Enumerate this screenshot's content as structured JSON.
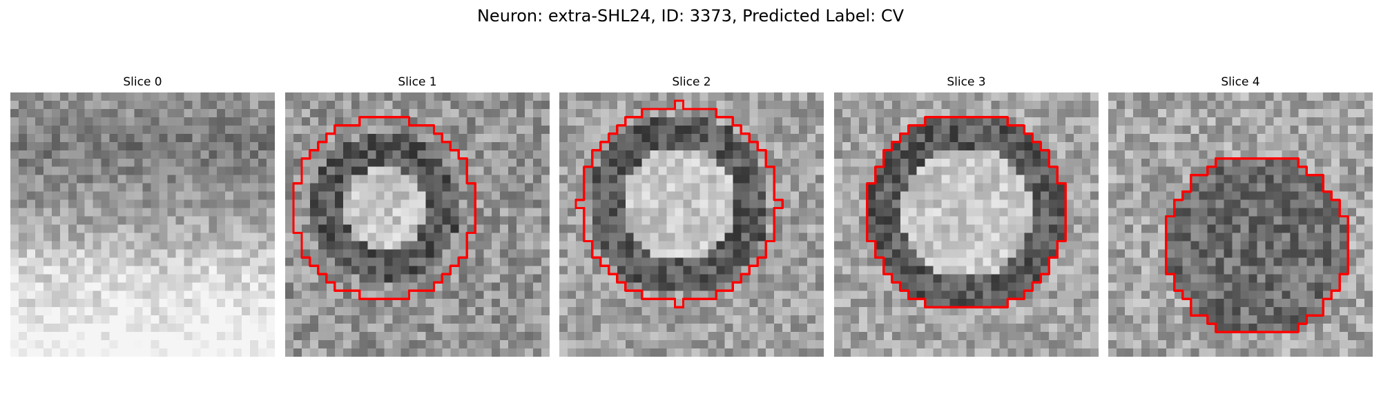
{
  "figure": {
    "suptitle": "Neuron: extra-SHL24, ID: 3373, Predicted Label: CV"
  },
  "panels": [
    {
      "title": "Slice 0",
      "has_contour": false,
      "seed": 11,
      "pattern": "band"
    },
    {
      "title": "Slice 1",
      "has_contour": true,
      "seed": 23,
      "pattern": "ring-small"
    },
    {
      "title": "Slice 2",
      "has_contour": true,
      "seed": 37,
      "pattern": "ring-bright"
    },
    {
      "title": "Slice 3",
      "has_contour": true,
      "seed": 51,
      "pattern": "ring-light"
    },
    {
      "title": "Slice 4",
      "has_contour": true,
      "seed": 67,
      "pattern": "blob-dark"
    }
  ],
  "colors": {
    "contour": "#ff0000",
    "background": "#ffffff"
  },
  "image": {
    "type": "grayscale-pixel-grid",
    "grid_size": 32
  }
}
